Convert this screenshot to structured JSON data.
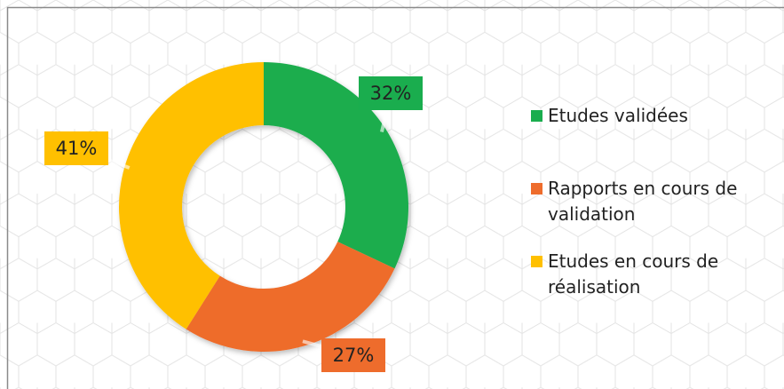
{
  "chart_data": {
    "type": "donut",
    "categories": [
      "Etudes validées",
      "Rapports en cours de validation",
      "Etudes en cours de réalisation"
    ],
    "values": [
      32,
      27,
      41
    ],
    "value_labels": [
      "32%",
      "27%",
      "41%"
    ],
    "colors": [
      "#1aad4e",
      "#ee6c2c",
      "#ffc000"
    ],
    "legend": "right"
  }
}
